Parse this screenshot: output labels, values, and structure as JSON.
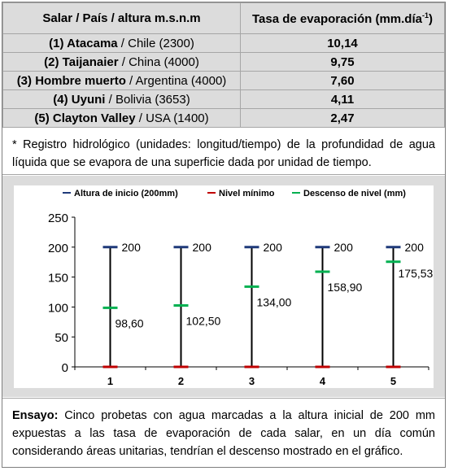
{
  "table": {
    "header_col1": "Salar / País /  altura m.s.n.m",
    "header_col2_main": "Tasa de evaporación (mm.día",
    "header_col2_sup": "-1",
    "header_col2_end": ")",
    "rows": [
      {
        "name": "(1) Atacama",
        "rest": " / Chile (2300)",
        "rate": "10,14"
      },
      {
        "name": "(2) Taijanaier",
        "rest": " / China (4000)",
        "rate": "9,75"
      },
      {
        "name": "(3) Hombre muerto",
        "rest": " / Argentina (4000)",
        "rate": "7,60"
      },
      {
        "name": "(4) Uyuni",
        "rest": " / Bolivia (3653)",
        "rate": "4,11"
      },
      {
        "name": "(5) Clayton Valley",
        "rest": " / USA (1400)",
        "rate": "2,47"
      }
    ]
  },
  "note": "* Registro hidrológico (unidades: longitud/tiempo) de la profundidad de agua líquida que se evapora de una superficie dada por unidad de tiempo.",
  "essay": {
    "label": "Ensayo:",
    "text": " Cinco probetas con agua marcadas a la altura inicial de 200 mm expuestas a las tasa de evaporación de cada salar, en un día común considerando áreas unitarias, tendrían el descenso mostrado en el gráfico."
  },
  "colors": {
    "start": "#1f3a7a",
    "min": "#c00000",
    "drop": "#00b050"
  },
  "chart_data": {
    "type": "line",
    "categories": [
      "1",
      "2",
      "3",
      "4",
      "5"
    ],
    "series": [
      {
        "name": "Altura de inicio (200mm)",
        "values": [
          200,
          200,
          200,
          200,
          200
        ],
        "labels": [
          "200",
          "200",
          "200",
          "200",
          "200"
        ]
      },
      {
        "name": "Nivel mínimo",
        "values": [
          0,
          0,
          0,
          0,
          0
        ]
      },
      {
        "name": "Descenso de nivel (mm)",
        "values": [
          98.6,
          102.5,
          134.0,
          158.9,
          175.53
        ],
        "labels": [
          "98,60",
          "102,50",
          "134,00",
          "158,90",
          "175,53"
        ]
      }
    ],
    "yticks": [
      "0",
      "50",
      "100",
      "150",
      "200",
      "250"
    ],
    "ylim": [
      0,
      250
    ],
    "legend_position": "top"
  }
}
